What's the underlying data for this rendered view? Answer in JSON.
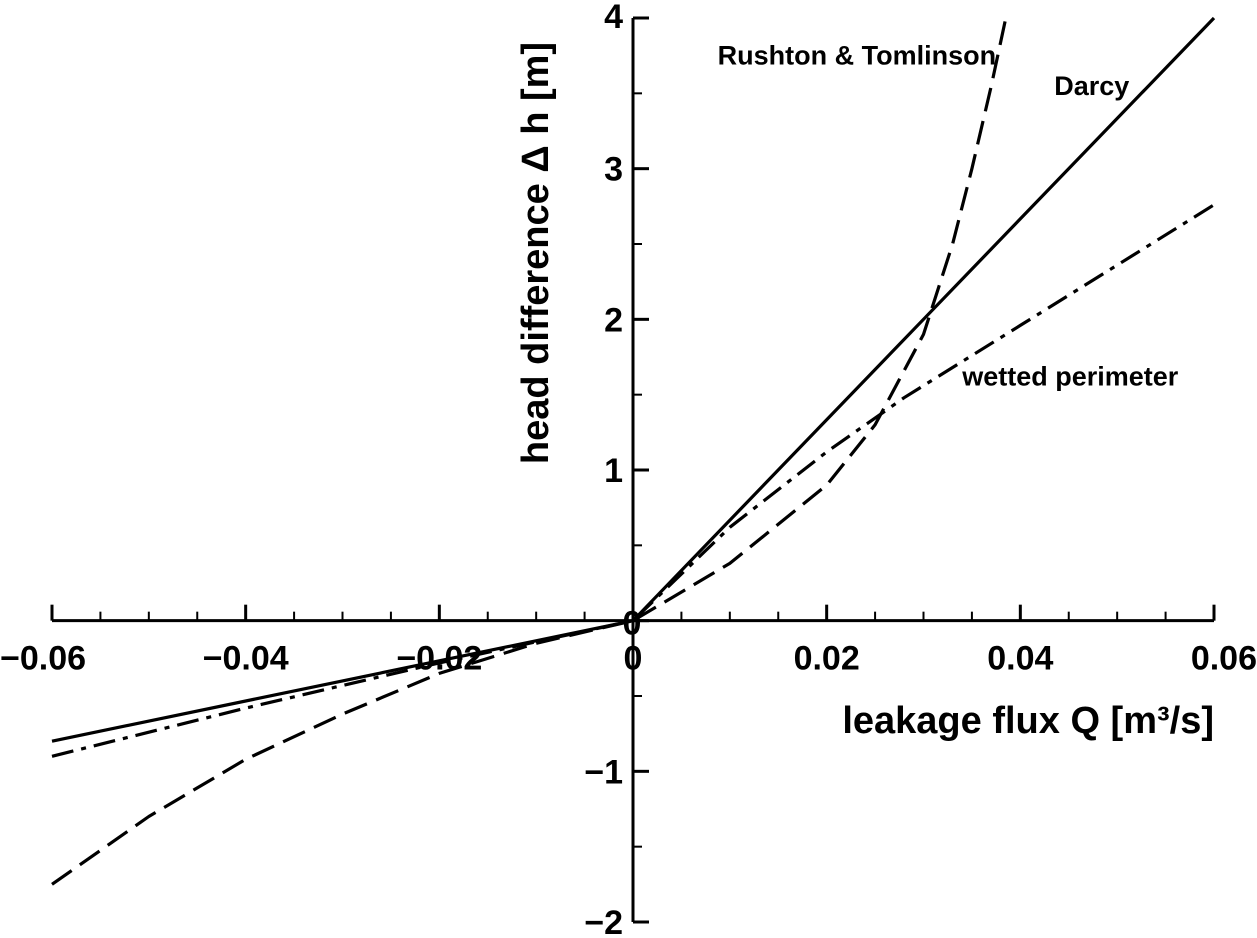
{
  "chart_data": {
    "type": "line",
    "xlabel": "leakage flux Q [m³/s]",
    "ylabel": "head difference Δ h [m]",
    "xlim": [
      -0.06,
      0.06
    ],
    "ylim": [
      -2,
      4
    ],
    "x_major_ticks": [
      -0.06,
      -0.04,
      -0.02,
      0,
      0.02,
      0.04,
      0.06
    ],
    "x_tick_labels": [
      "−0.06",
      "−0.04",
      "−0.02",
      "0",
      "0.02",
      "0.04",
      "0.06"
    ],
    "y_major_ticks": [
      -2,
      -1,
      0,
      1,
      2,
      3,
      4
    ],
    "y_tick_labels": [
      "−2",
      "−1",
      "0",
      "1",
      "2",
      "3",
      "4"
    ],
    "grid": false,
    "legend": "none (series labelled inline)",
    "series": [
      {
        "name": "Darcy",
        "line_style": "solid",
        "x": [
          -0.06,
          -0.03,
          0,
          0.03,
          0.06
        ],
        "y": [
          -0.8,
          -0.4,
          0,
          2.0,
          4.0
        ]
      },
      {
        "name": "wetted perimeter",
        "line_style": "dash-dot",
        "x": [
          -0.06,
          -0.04,
          -0.02,
          0,
          0.01,
          0.02,
          0.028,
          0.04,
          0.05,
          0.06
        ],
        "y": [
          -0.9,
          -0.58,
          -0.28,
          0,
          0.62,
          1.12,
          1.48,
          1.96,
          2.36,
          2.76
        ]
      },
      {
        "name": "Rushton & Tomlinson",
        "line_style": "dashed",
        "x": [
          -0.06,
          -0.05,
          -0.04,
          -0.03,
          -0.02,
          -0.01,
          0,
          0.01,
          0.02,
          0.025,
          0.03,
          0.033,
          0.035,
          0.037,
          0.0385
        ],
        "y": [
          -1.75,
          -1.3,
          -0.92,
          -0.62,
          -0.35,
          -0.15,
          0,
          0.38,
          0.9,
          1.3,
          1.9,
          2.5,
          3.0,
          3.55,
          4.0
        ]
      }
    ],
    "annotations": [
      {
        "text": "Rushton & Tomlinson",
        "x": 0.0375,
        "y": 3.75,
        "anchor": "end"
      },
      {
        "text": "Darcy",
        "x": 0.0435,
        "y": 3.55,
        "anchor": "start"
      },
      {
        "text": "wetted perimeter",
        "x": 0.034,
        "y": 1.62,
        "anchor": "start"
      }
    ]
  }
}
